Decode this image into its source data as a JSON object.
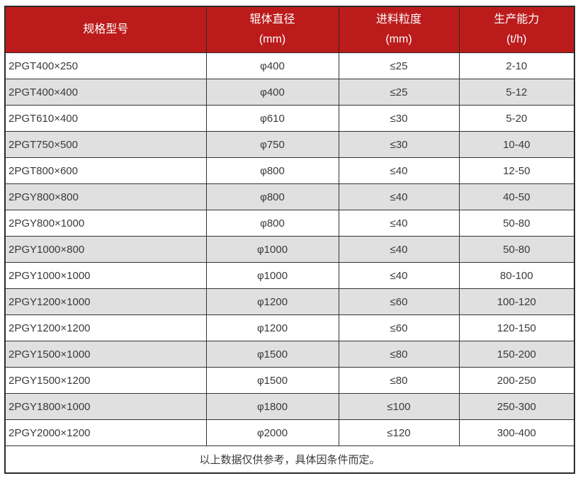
{
  "colors": {
    "header_bg": "#bc1b1c",
    "header_text": "#ffffff",
    "row_alt_bg": "#e0e0e0",
    "border": "#333333",
    "text": "#3a3a3a"
  },
  "table": {
    "headers": [
      {
        "title": "规格型号",
        "unit": ""
      },
      {
        "title": "辊体直径",
        "unit": "(mm)"
      },
      {
        "title": "进料粒度",
        "unit": "(mm)"
      },
      {
        "title": "生产能力",
        "unit": "(t/h)"
      }
    ],
    "rows": [
      [
        "2PGT400×250",
        "φ400",
        "≤25",
        "2-10"
      ],
      [
        "2PGT400×400",
        "φ400",
        "≤25",
        "5-12"
      ],
      [
        "2PGT610×400",
        "φ610",
        "≤30",
        "5-20"
      ],
      [
        "2PGT750×500",
        "φ750",
        "≤30",
        "10-40"
      ],
      [
        "2PGT800×600",
        "φ800",
        "≤40",
        "12-50"
      ],
      [
        "2PGY800×800",
        "φ800",
        "≤40",
        "40-50"
      ],
      [
        "2PGY800×1000",
        "φ800",
        "≤40",
        "50-80"
      ],
      [
        "2PGY1000×800",
        "φ1000",
        "≤40",
        "50-80"
      ],
      [
        "2PGY1000×1000",
        "φ1000",
        "≤40",
        "80-100"
      ],
      [
        "2PGY1200×1000",
        "φ1200",
        "≤60",
        "100-120"
      ],
      [
        "2PGY1200×1200",
        "φ1200",
        "≤60",
        "120-150"
      ],
      [
        "2PGY1500×1000",
        "φ1500",
        "≤80",
        "150-200"
      ],
      [
        "2PGY1500×1200",
        "φ1500",
        "≤80",
        "200-250"
      ],
      [
        "2PGY1800×1000",
        "φ1800",
        "≤100",
        "250-300"
      ],
      [
        "2PGY2000×1200",
        "φ2000",
        "≤120",
        "300-400"
      ]
    ],
    "footnote": "以上数据仅供参考，具体因条件而定。"
  }
}
